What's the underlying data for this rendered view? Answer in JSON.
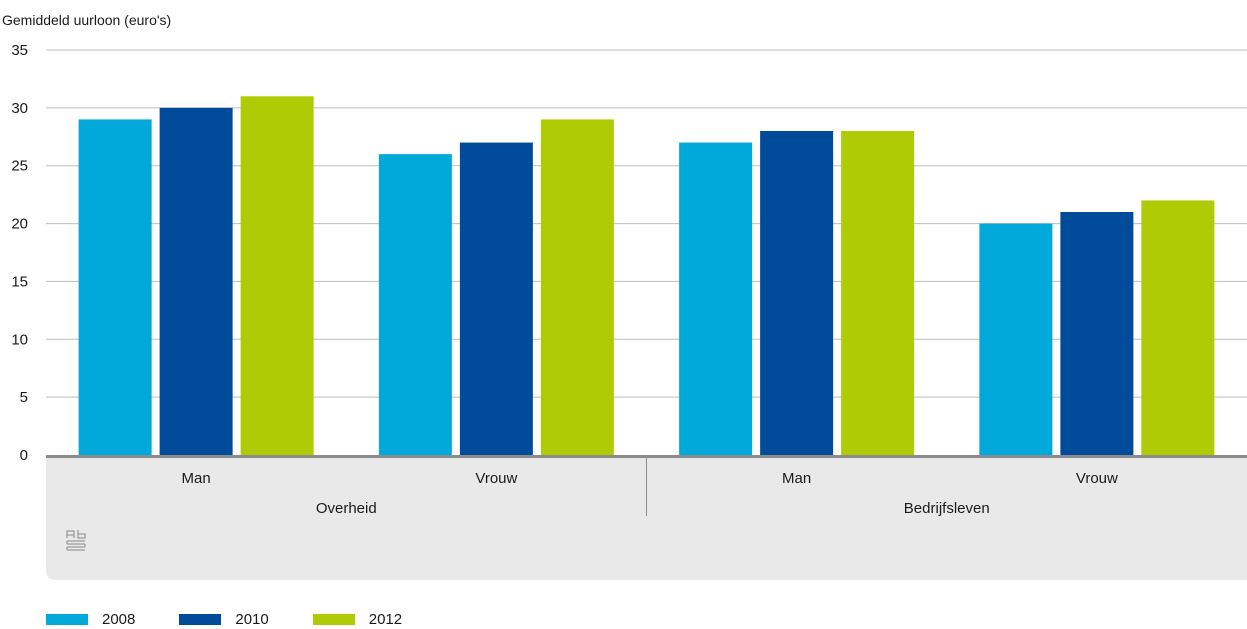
{
  "chart_data": {
    "type": "bar",
    "title": "Gemiddeld uurloon (euro's)",
    "xlabel": "",
    "ylabel": "",
    "ylim": [
      0,
      35
    ],
    "yticks": [
      0,
      5,
      10,
      15,
      20,
      25,
      30,
      35
    ],
    "grid": true,
    "legend_position": "bottom-left",
    "groups": [
      {
        "label": "Overheid",
        "categories": [
          "Man",
          "Vrouw"
        ]
      },
      {
        "label": "Bedrijfsleven",
        "categories": [
          "Man",
          "Vrouw"
        ]
      }
    ],
    "categories": [
      "Man",
      "Vrouw",
      "Man",
      "Vrouw"
    ],
    "series": [
      {
        "name": "2008",
        "color": "#00a9d9",
        "values": [
          29,
          26,
          27,
          20
        ]
      },
      {
        "name": "2010",
        "color": "#004c9b",
        "values": [
          30,
          27,
          28,
          21
        ]
      },
      {
        "name": "2012",
        "color": "#afcb05",
        "values": [
          31,
          29,
          28,
          22
        ]
      }
    ]
  },
  "colors": {
    "grid": "#bdbdbd",
    "axis": "#8c8c8c",
    "category_panel": "#e9e9e9",
    "logo": "#9a9a9a"
  },
  "logo": {
    "icon": "cbs-logo-icon"
  }
}
